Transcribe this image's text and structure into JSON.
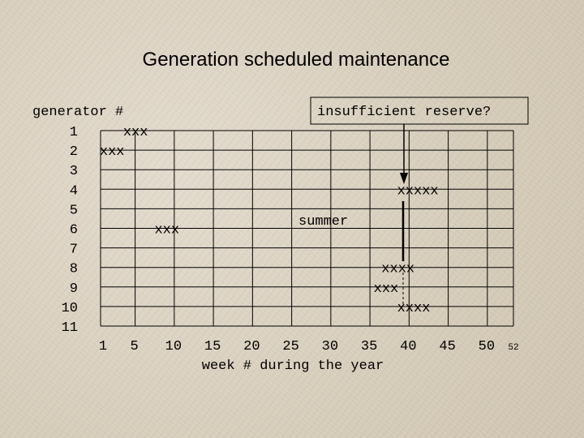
{
  "title": "Generation scheduled maintenance",
  "ylabel": "generator #",
  "xlabel": "week # during the year",
  "generators": [
    "1",
    "2",
    "3",
    "4",
    "5",
    "6",
    "7",
    "8",
    "9",
    "10",
    "11"
  ],
  "week_ticks": [
    "1",
    "5",
    "10",
    "15",
    "20",
    "25",
    "30",
    "35",
    "40",
    "45",
    "50"
  ],
  "week_end": "52",
  "annotations": {
    "insufficient": "insufficient reserve?",
    "summer": "summer"
  },
  "chart_data": {
    "type": "scatter",
    "title": "Generation scheduled maintenance",
    "xlabel": "week # during the year",
    "ylabel": "generator #",
    "xlim": [
      1,
      52
    ],
    "ylim": [
      1,
      11
    ],
    "x_ticks": [
      1,
      5,
      10,
      15,
      20,
      25,
      30,
      35,
      40,
      45,
      50,
      52
    ],
    "y_ticks": [
      1,
      2,
      3,
      4,
      5,
      6,
      7,
      8,
      9,
      10,
      11
    ],
    "grid": true,
    "series": [
      {
        "generator": 1,
        "text": "xxx",
        "start_week": 4
      },
      {
        "generator": 2,
        "text": "xxx",
        "start_week": 1
      },
      {
        "generator": 4,
        "text": "xxxxx",
        "start_week": 39
      },
      {
        "generator": 6,
        "text": "xxx",
        "start_week": 8
      },
      {
        "generator": 8,
        "text": "xxxx",
        "start_week": 37
      },
      {
        "generator": 9,
        "text": "xxx",
        "start_week": 36
      },
      {
        "generator": 10,
        "text": "xxxx",
        "start_week": 39
      }
    ]
  }
}
